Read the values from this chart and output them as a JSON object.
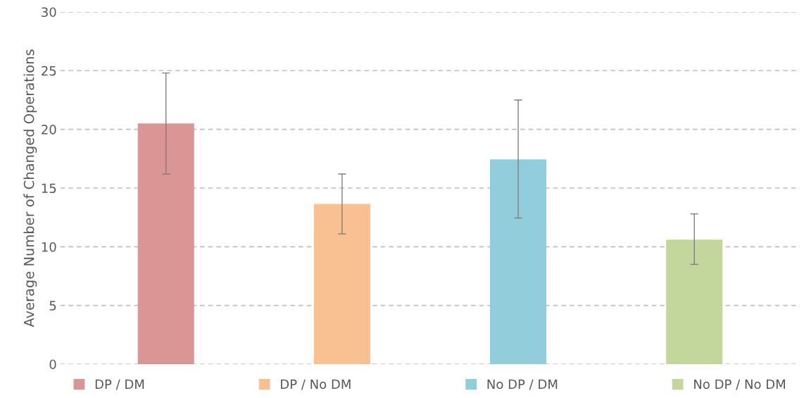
{
  "chart_data": {
    "type": "bar",
    "ylabel": "Average Number of Changed Operations",
    "categories": [
      null,
      null,
      null,
      null
    ],
    "series": [
      {
        "name": "DP / DM",
        "color": "#d99694",
        "values": [
          20.5,
          null,
          null,
          null
        ],
        "errors": [
          [
            16.2,
            24.8
          ],
          null,
          null,
          null
        ]
      },
      {
        "name": "DP / No DM",
        "color": "#f9c091",
        "values": [
          null,
          13.65,
          null,
          null
        ],
        "errors": [
          null,
          [
            11.1,
            16.2
          ],
          null,
          null
        ]
      },
      {
        "name": "No DP / DM",
        "color": "#92cddc",
        "values": [
          null,
          null,
          17.45,
          null
        ],
        "errors": [
          null,
          null,
          [
            12.45,
            22.5
          ],
          null
        ]
      },
      {
        "name": "No DP / No DM",
        "color": "#c3d69b",
        "values": [
          null,
          null,
          null,
          10.6
        ],
        "errors": [
          null,
          null,
          null,
          [
            8.5,
            12.8
          ]
        ]
      }
    ],
    "ylim": [
      0,
      30
    ],
    "yticks": [
      0,
      5,
      10,
      15,
      20,
      25,
      30
    ],
    "grid": "y",
    "legend": "bottom"
  }
}
